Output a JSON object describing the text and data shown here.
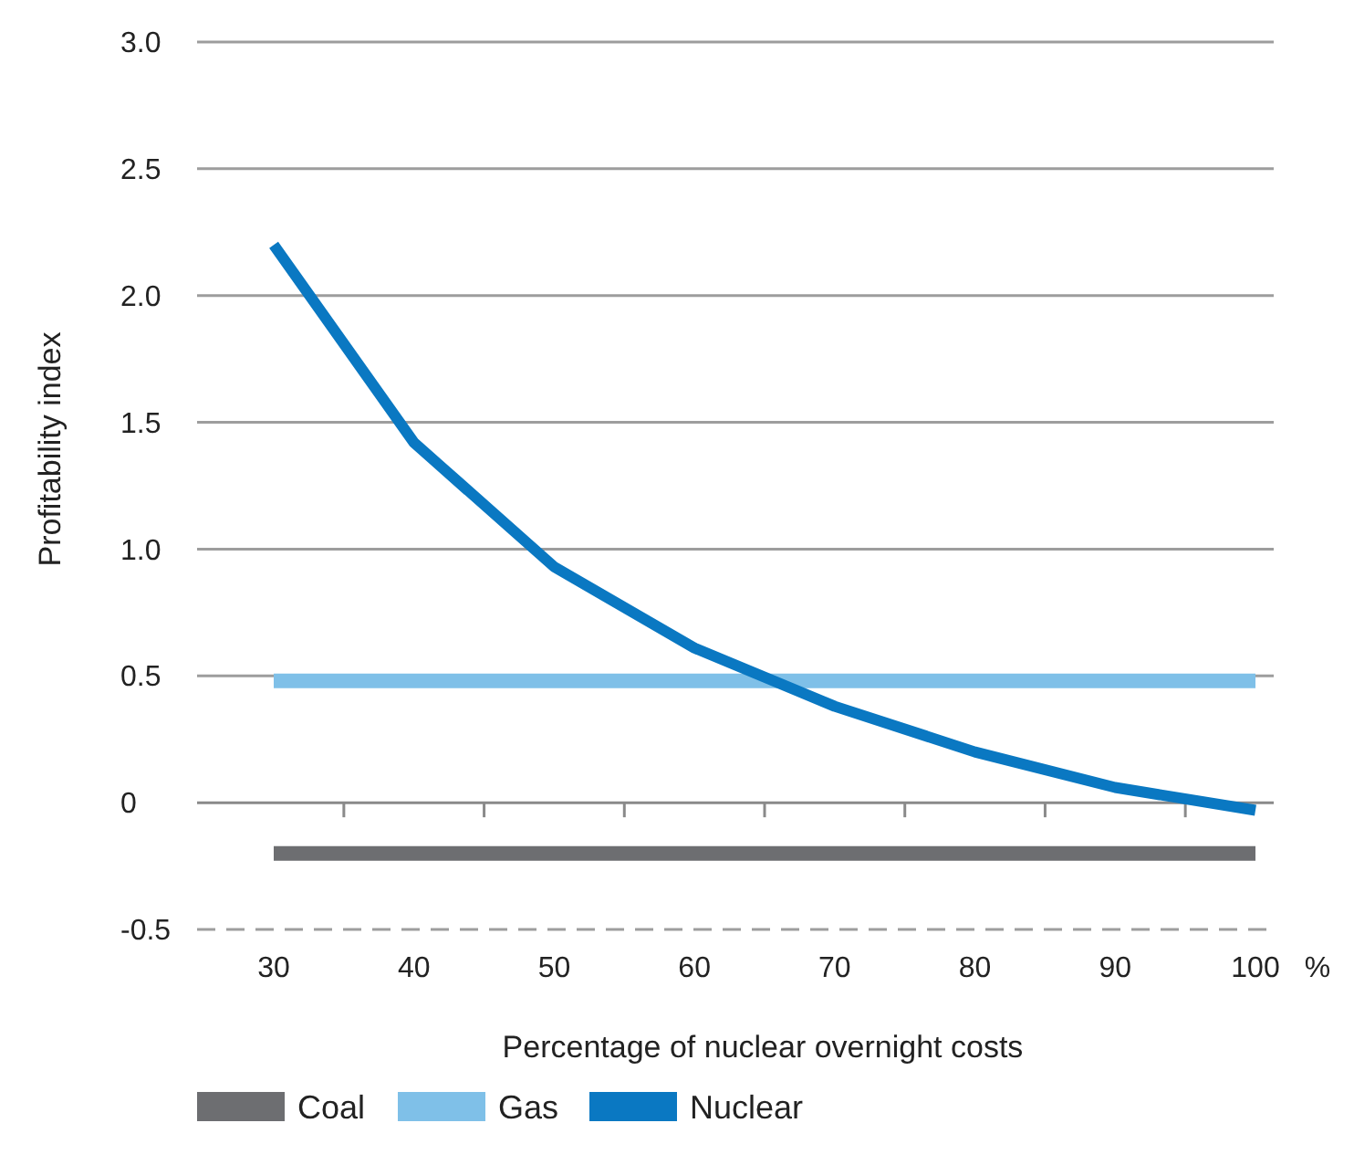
{
  "chart_data": {
    "type": "line",
    "xlabel": "Percentage of nuclear overnight costs",
    "ylabel": "Profitability index",
    "categories": [
      "30",
      "40",
      "50",
      "60",
      "70",
      "80",
      "90",
      "100"
    ],
    "series": [
      {
        "name": "Coal",
        "color": "#6d6e71",
        "values": [
          -0.2,
          -0.2,
          -0.2,
          -0.2,
          -0.2,
          -0.2,
          -0.2,
          -0.2
        ]
      },
      {
        "name": "Gas",
        "color": "#7fc0e8",
        "values": [
          0.48,
          0.48,
          0.48,
          0.48,
          0.48,
          0.48,
          0.48,
          0.48
        ]
      },
      {
        "name": "Nuclear",
        "color": "#0a78c2",
        "values": [
          2.2,
          1.42,
          0.93,
          0.61,
          0.38,
          0.2,
          0.06,
          -0.03
        ]
      }
    ],
    "ylim": [
      -0.5,
      3.0
    ],
    "yticks": [
      {
        "value": -0.5,
        "label": "-0.5"
      },
      0,
      {
        "value": 0.5,
        "label": "0.5"
      },
      {
        "value": 1,
        "label": "1.0"
      },
      {
        "value": 1.5,
        "label": "1.5"
      },
      {
        "value": 2,
        "label": "2.0"
      },
      {
        "value": 2.5,
        "label": "2.5"
      },
      {
        "value": 3,
        "label": "3.0"
      }
    ],
    "grid": "y",
    "legend": "bottom",
    "marker": "none",
    "line_style": "solid",
    "annotations": [
      "%"
    ]
  }
}
